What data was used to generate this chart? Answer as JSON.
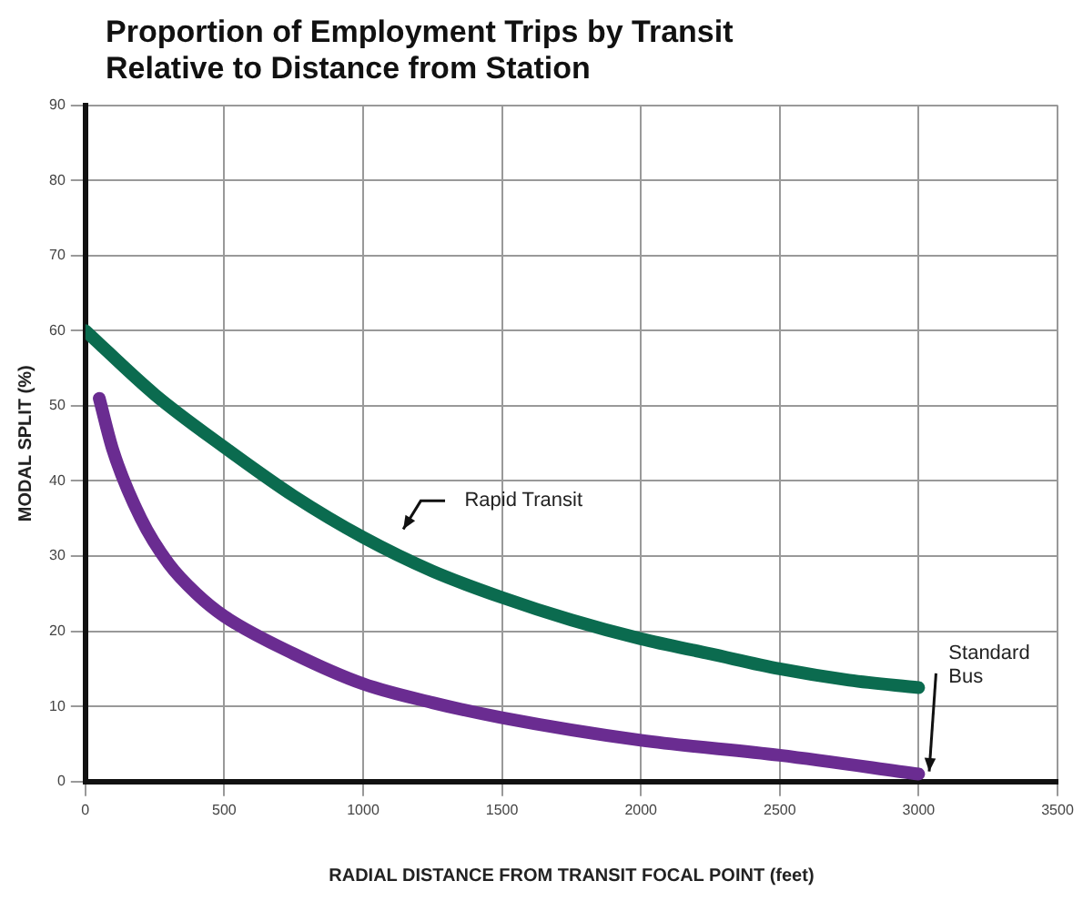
{
  "chart_data": {
    "type": "line",
    "title": "Proportion of Employment Trips by Transit\nRelative to Distance from Station",
    "xlabel": "RADIAL DISTANCE FROM TRANSIT FOCAL POINT (feet)",
    "ylabel": "MODAL SPLIT (%)",
    "series": [
      {
        "color": "#0b6b4f",
        "x": [
          0,
          250,
          500,
          750,
          1000,
          1250,
          1500,
          1750,
          2000,
          2250,
          2500,
          2750,
          3000
        ],
        "values": [
          60,
          51.5,
          44.5,
          38,
          32.5,
          28,
          24.5,
          21.5,
          19,
          17,
          15,
          13.5,
          12.5
        ]
      },
      {
        "color": "#6a2c91",
        "x": [
          50,
          100,
          200,
          300,
          400,
          500,
          750,
          1000,
          1250,
          1500,
          2000,
          2500,
          3000
        ],
        "values": [
          51,
          44,
          35,
          29,
          25,
          22,
          17,
          13,
          10.5,
          8.5,
          5.5,
          3.5,
          1
        ]
      }
    ],
    "xlim": [
      0,
      3500
    ],
    "xticks": [
      0,
      500,
      1000,
      1500,
      2000,
      2500,
      3000,
      3500
    ],
    "ylim": [
      0,
      90
    ],
    "yticks": [
      0,
      10,
      20,
      30,
      40,
      50,
      60,
      70,
      80,
      90
    ],
    "grid": true,
    "legend": false,
    "marker": "none",
    "line_style": "solid",
    "annotations": [
      "Rapid Transit",
      "Standard\nBus"
    ]
  }
}
